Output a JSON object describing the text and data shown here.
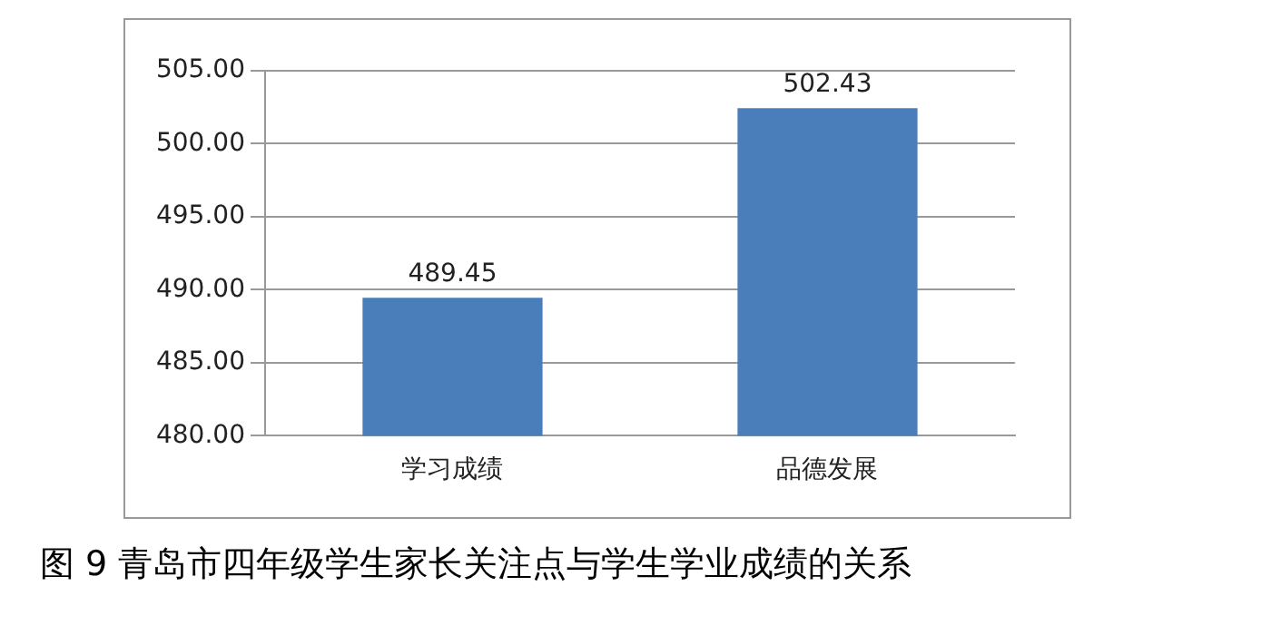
{
  "chart_data": {
    "type": "bar",
    "title": "图 9 青岛市四年级学生家长关注点与学生学业成绩的关系",
    "categories": [
      "学习成绩",
      "品德发展"
    ],
    "values": [
      489.45,
      502.43
    ],
    "color": "#4a7ebb",
    "ylim": [
      480,
      505
    ],
    "yticks": [
      {
        "value": 480,
        "label": "480.00"
      },
      {
        "value": 485,
        "label": "485.00"
      },
      {
        "value": 490,
        "label": "490.00"
      },
      {
        "value": 495,
        "label": "495.00"
      },
      {
        "value": 500,
        "label": "500.00"
      },
      {
        "value": 505,
        "label": "505.00"
      }
    ],
    "grid": "y",
    "data_labels": true,
    "legend": false
  }
}
